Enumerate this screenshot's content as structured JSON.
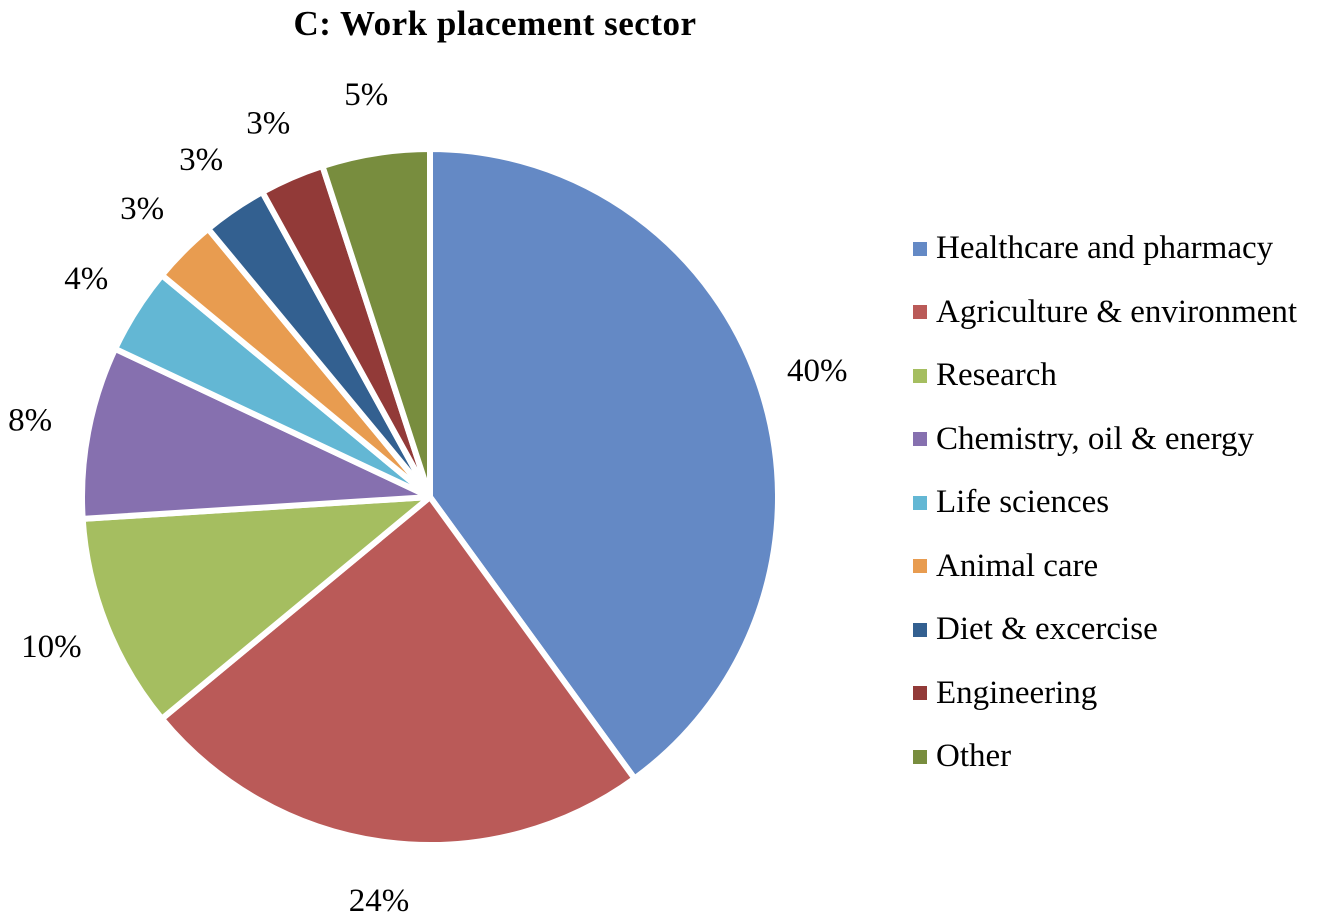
{
  "chart_data": {
    "type": "pie",
    "title": "C: Work placement sector",
    "categories": [
      "Healthcare and pharmacy",
      "Agriculture & environment",
      "Research",
      "Chemistry, oil & energy",
      "Life sciences",
      "Animal care",
      "Diet & excercise",
      "Engineering",
      "Other"
    ],
    "values": [
      40,
      24,
      10,
      8,
      4,
      3,
      3,
      3,
      5
    ],
    "labels": [
      "40%",
      "24%",
      "10%",
      "8%",
      "4%",
      "3%",
      "3%",
      "3%",
      "5%"
    ],
    "colors": [
      "#6489C5",
      "#BA5A58",
      "#A5BE60",
      "#8670AF",
      "#63B7D4",
      "#E89C50",
      "#336090",
      "#923A38",
      "#788D3E"
    ],
    "start_angle_deg": 0,
    "direction": "clockwise",
    "legend_position": "right",
    "slice_border_color": "#FFFFFF",
    "label_color": "#000000",
    "background_color": "#FFFFFF"
  }
}
